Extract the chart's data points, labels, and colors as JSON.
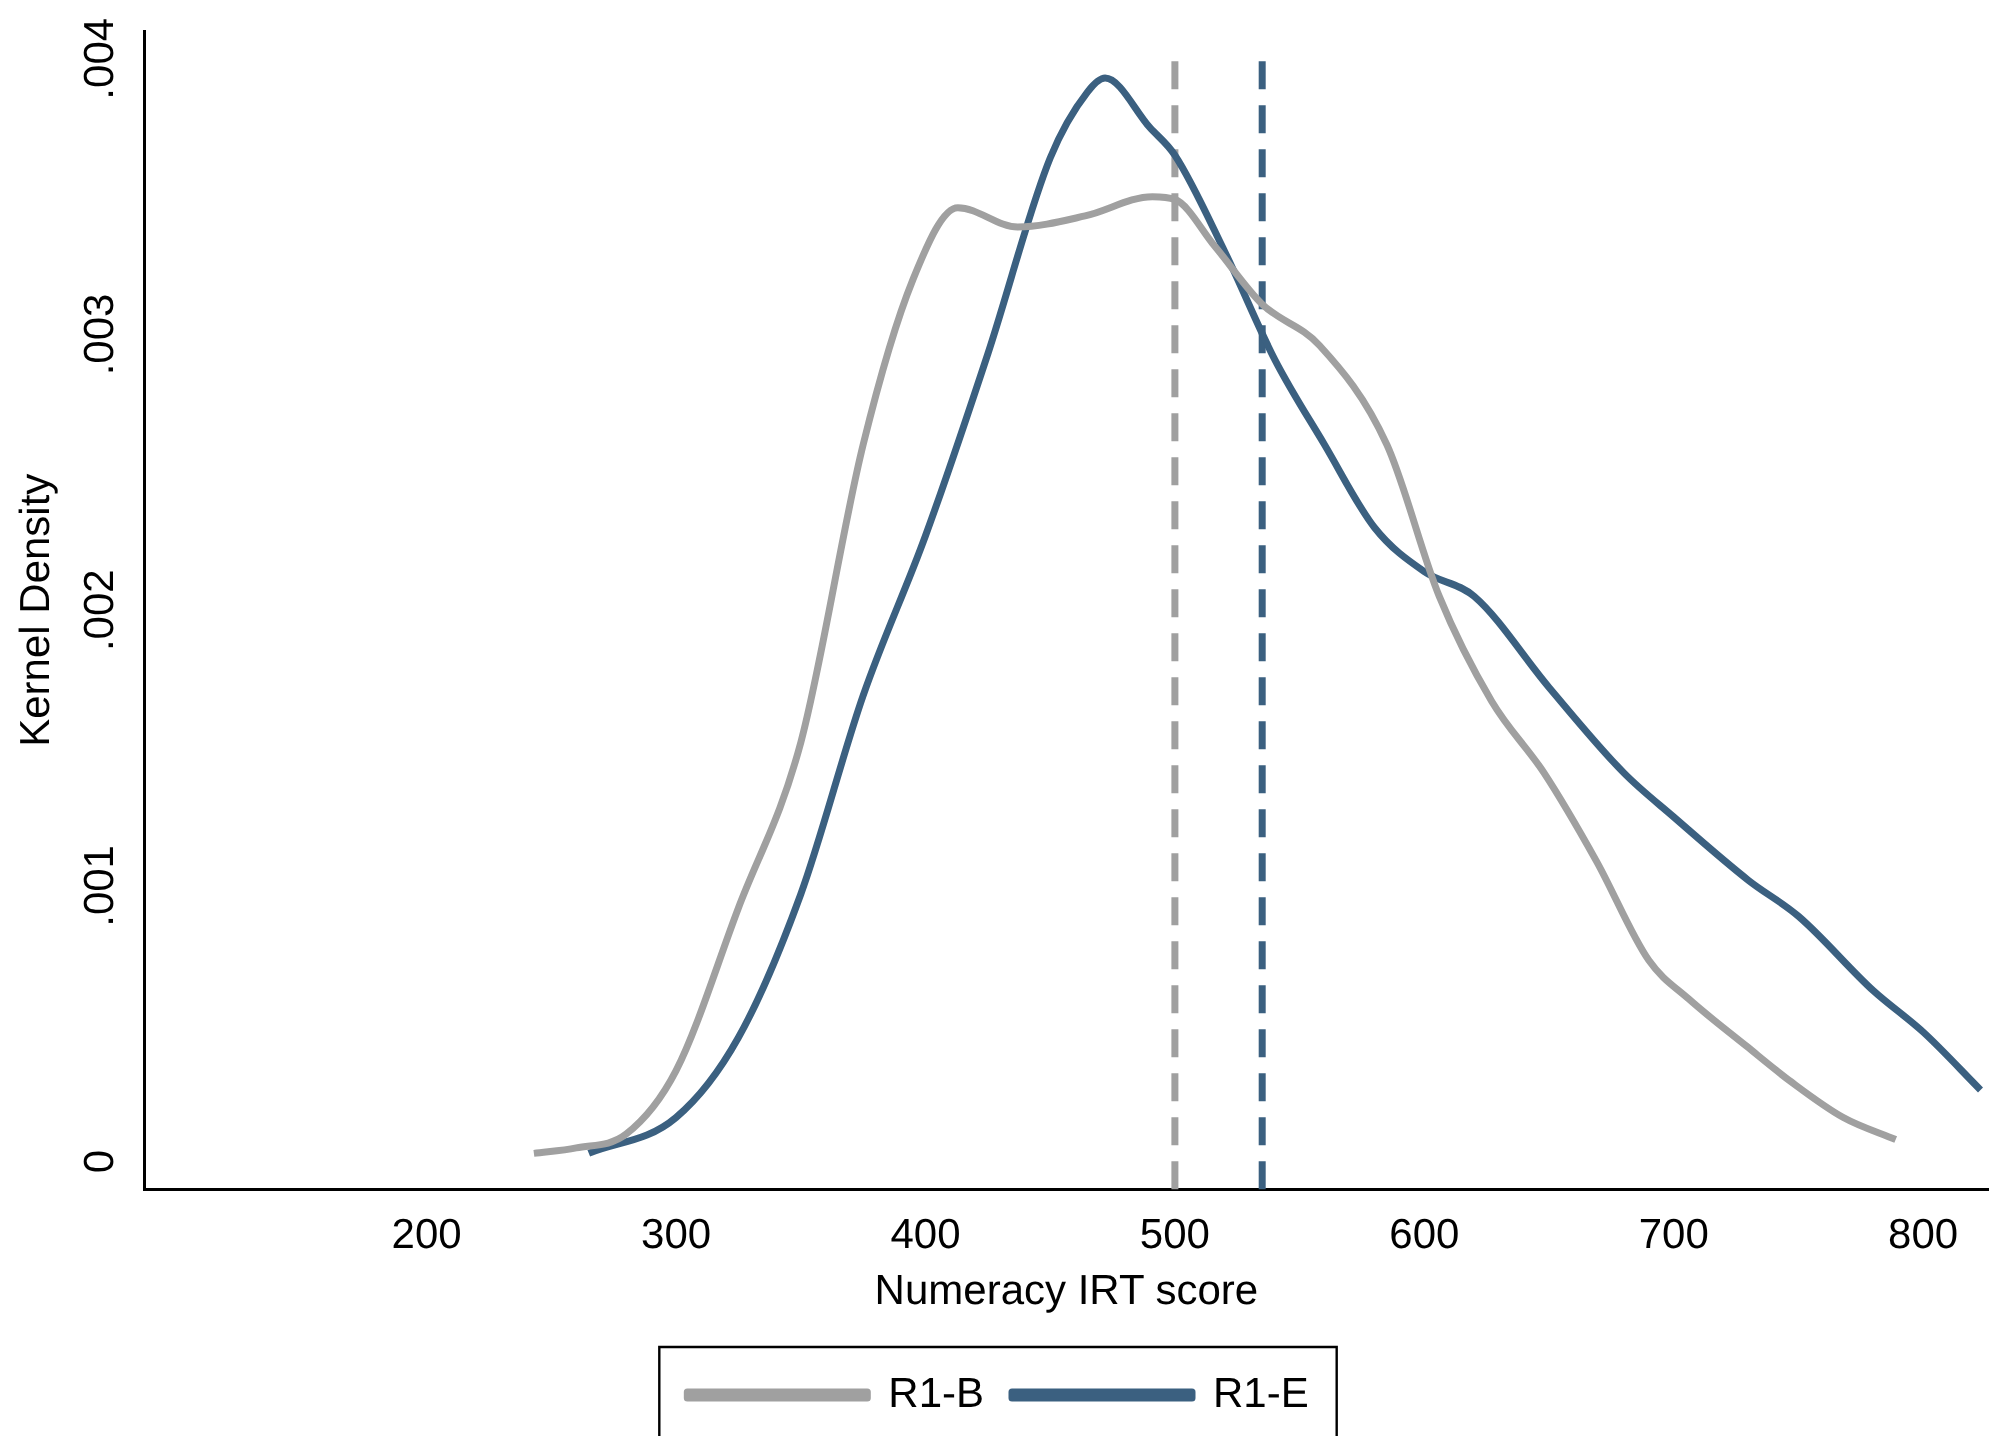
{
  "chart_data": {
    "type": "line",
    "xlabel": "Numeracy IRT score",
    "ylabel": "Kernel Density",
    "xlim": [
      87,
      826
    ],
    "xticks": [
      200,
      300,
      400,
      500,
      600,
      700,
      800
    ],
    "ylim": [
      -0.0001,
      0.0041
    ],
    "yticks": [
      0,
      {
        "value": 0.001,
        "label": ".001"
      },
      {
        "value": 0.002,
        "label": ".002"
      },
      {
        "value": 0.003,
        "label": ".003"
      },
      {
        "value": 0.004,
        "label": ".004"
      }
    ],
    "grid": false,
    "legend": "bottom",
    "marker": "none",
    "line_style": "solid",
    "series": [
      {
        "name": "R1-B",
        "color": "#a0a0a0",
        "x": [
          243,
          260,
          280,
          300,
          325,
          350,
          375,
          395,
          413,
          437,
          464,
          491,
          500,
          516,
          535,
          558,
          585,
          606,
          627,
          648,
          669,
          690,
          706,
          729,
          747,
          768,
          789
        ],
        "values": [
          3e-05,
          5e-05,
          0.0001,
          0.00033,
          0.00092,
          0.00152,
          0.0026,
          0.0032,
          0.00346,
          0.00339,
          0.00343,
          0.0035,
          0.00349,
          0.00332,
          0.00311,
          0.00296,
          0.0026,
          0.00205,
          0.00167,
          0.00141,
          0.00109,
          0.00073,
          0.00059,
          0.00042,
          0.00029,
          0.00016,
          8e-05
        ]
      },
      {
        "name": "R1-E",
        "color": "#3b6080",
        "x": [
          265,
          300,
          325,
          350,
          375,
          400,
          425,
          450,
          465,
          472,
          490,
          500,
          520,
          540,
          560,
          580,
          600,
          620,
          650,
          680,
          700,
          730,
          750,
          780,
          800,
          823
        ],
        "values": [
          3e-05,
          0.00016,
          0.00045,
          0.00097,
          0.00169,
          0.00227,
          0.00293,
          0.00364,
          0.00388,
          0.00393,
          0.00375,
          0.00365,
          0.0033,
          0.00291,
          0.0026,
          0.0023,
          0.00214,
          0.00205,
          0.00172,
          0.00141,
          0.00125,
          0.00102,
          0.00089,
          0.00062,
          0.00047,
          0.00026
        ]
      }
    ],
    "ref_lines": [
      {
        "axis": "x",
        "value": 500,
        "color": "#a0a0a0",
        "line_style": "dashed"
      },
      {
        "axis": "x",
        "value": 535,
        "color": "#3b6080",
        "line_style": "dashed"
      }
    ]
  }
}
